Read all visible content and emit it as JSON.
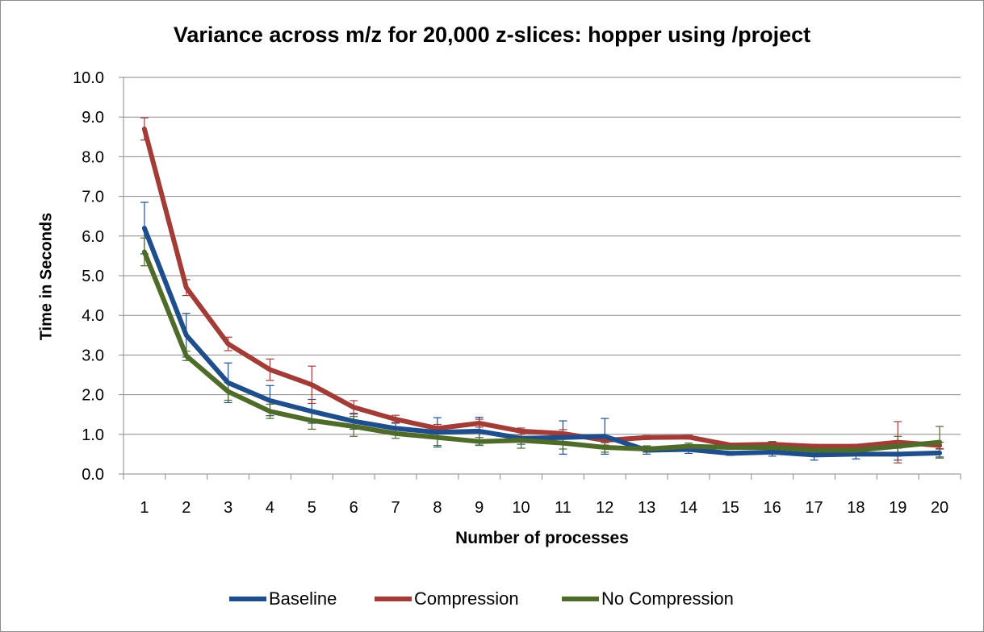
{
  "chart_data": {
    "type": "line",
    "title": "Variance across m/z for 20,000 z-slices: hopper using /project",
    "xlabel": "Number of processes",
    "ylabel": "Time in Seconds",
    "ylim": [
      0,
      10
    ],
    "y_ticks": [
      "0.0",
      "1.0",
      "2.0",
      "3.0",
      "4.0",
      "5.0",
      "6.0",
      "7.0",
      "8.0",
      "9.0",
      "10.0"
    ],
    "categories": [
      "1",
      "2",
      "3",
      "4",
      "5",
      "6",
      "7",
      "8",
      "9",
      "10",
      "11",
      "12",
      "13",
      "14",
      "15",
      "16",
      "17",
      "18",
      "19",
      "20"
    ],
    "grid": "horizontal",
    "legend_position": "bottom",
    "series": [
      {
        "name": "Baseline",
        "color": "#1f4e8c",
        "values": [
          6.2,
          3.5,
          2.3,
          1.85,
          1.58,
          1.33,
          1.15,
          1.05,
          1.08,
          0.9,
          0.92,
          0.95,
          0.6,
          0.62,
          0.52,
          0.55,
          0.48,
          0.5,
          0.5,
          0.53
        ],
        "error": [
          0.65,
          0.55,
          0.5,
          0.38,
          0.3,
          0.2,
          0.15,
          0.37,
          0.35,
          0.15,
          0.42,
          0.45,
          0.1,
          0.1,
          0.05,
          0.1,
          0.13,
          0.12,
          0.15,
          0.1
        ]
      },
      {
        "name": "Compression",
        "color": "#a33b37",
        "values": [
          8.7,
          4.7,
          3.28,
          2.63,
          2.25,
          1.68,
          1.38,
          1.15,
          1.28,
          1.08,
          1.02,
          0.85,
          0.92,
          0.93,
          0.73,
          0.75,
          0.7,
          0.7,
          0.8,
          0.72
        ],
        "error": [
          0.28,
          0.2,
          0.17,
          0.27,
          0.47,
          0.17,
          0.1,
          0.1,
          0.1,
          0.08,
          0.1,
          0.12,
          0.05,
          0.05,
          0.05,
          0.05,
          0.05,
          0.05,
          0.52,
          0.08
        ]
      },
      {
        "name": "No Compression",
        "color": "#4f6b2a",
        "values": [
          5.6,
          2.98,
          2.08,
          1.58,
          1.35,
          1.2,
          1.02,
          0.92,
          0.82,
          0.85,
          0.78,
          0.67,
          0.63,
          0.7,
          0.67,
          0.67,
          0.6,
          0.6,
          0.7,
          0.8
        ],
        "error": [
          0.35,
          0.12,
          0.22,
          0.18,
          0.22,
          0.25,
          0.12,
          0.2,
          0.1,
          0.2,
          0.15,
          0.12,
          0.08,
          0.08,
          0.05,
          0.15,
          0.12,
          0.12,
          0.25,
          0.4
        ]
      }
    ]
  }
}
